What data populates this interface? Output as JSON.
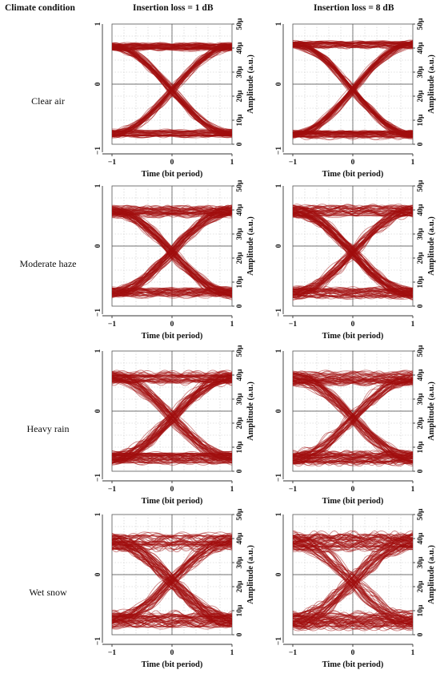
{
  "header": {
    "climate": "Climate condition",
    "col1": "Insertion loss = 1 dB",
    "col2": "Insertion loss = 8 dB"
  },
  "rows": [
    {
      "label": "Clear air"
    },
    {
      "label": "Moderate haze"
    },
    {
      "label": "Heavy rain"
    },
    {
      "label": "Wet snow"
    }
  ],
  "axes": {
    "xlabel": "Time (bit period)",
    "ylabel": "Amplitude (a.u.)",
    "x_ticks": [
      "−1",
      "0",
      "1"
    ],
    "left_ticks": [
      "1",
      "0",
      "−1"
    ],
    "right_ticks": [
      "50μ",
      "40μ",
      "30μ",
      "20μ",
      "10μ",
      "0"
    ]
  },
  "colors": {
    "trace": "#a10d0d",
    "grid": "#c8c8c8"
  },
  "chart_data": [
    {
      "type": "line",
      "row": "Clear air",
      "insertion_loss_db": 1,
      "xlim": [
        -1,
        1
      ],
      "ylim": [
        0,
        50
      ],
      "high_level": 40.5,
      "low_level": 4.5,
      "noise": 1.3,
      "grid": true
    },
    {
      "type": "line",
      "row": "Clear air",
      "insertion_loss_db": 8,
      "xlim": [
        -1,
        1
      ],
      "ylim": [
        0,
        50
      ],
      "high_level": 41.5,
      "low_level": 4.0,
      "noise": 1.4,
      "grid": true
    },
    {
      "type": "line",
      "row": "Moderate haze",
      "insertion_loss_db": 1,
      "xlim": [
        -1,
        1
      ],
      "ylim": [
        0,
        50
      ],
      "high_level": 39.5,
      "low_level": 5.5,
      "noise": 1.9,
      "grid": true
    },
    {
      "type": "line",
      "row": "Moderate haze",
      "insertion_loss_db": 8,
      "xlim": [
        -1,
        1
      ],
      "ylim": [
        0,
        50
      ],
      "high_level": 39.5,
      "low_level": 5.5,
      "noise": 2.0,
      "grid": true
    },
    {
      "type": "line",
      "row": "Heavy rain",
      "insertion_loss_db": 1,
      "xlim": [
        -1,
        1
      ],
      "ylim": [
        0,
        50
      ],
      "high_level": 39.0,
      "low_level": 5.5,
      "noise": 2.2,
      "grid": true
    },
    {
      "type": "line",
      "row": "Heavy rain",
      "insertion_loss_db": 8,
      "xlim": [
        -1,
        1
      ],
      "ylim": [
        0,
        50
      ],
      "high_level": 38.5,
      "low_level": 5.5,
      "noise": 2.3,
      "grid": true
    },
    {
      "type": "line",
      "row": "Wet snow",
      "insertion_loss_db": 1,
      "xlim": [
        -1,
        1
      ],
      "ylim": [
        0,
        50
      ],
      "high_level": 38.5,
      "low_level": 6.0,
      "noise": 2.8,
      "grid": true
    },
    {
      "type": "line",
      "row": "Wet snow",
      "insertion_loss_db": 8,
      "xlim": [
        -1,
        1
      ],
      "ylim": [
        0,
        50
      ],
      "high_level": 38.5,
      "low_level": 6.0,
      "noise": 3.0,
      "grid": true
    }
  ]
}
